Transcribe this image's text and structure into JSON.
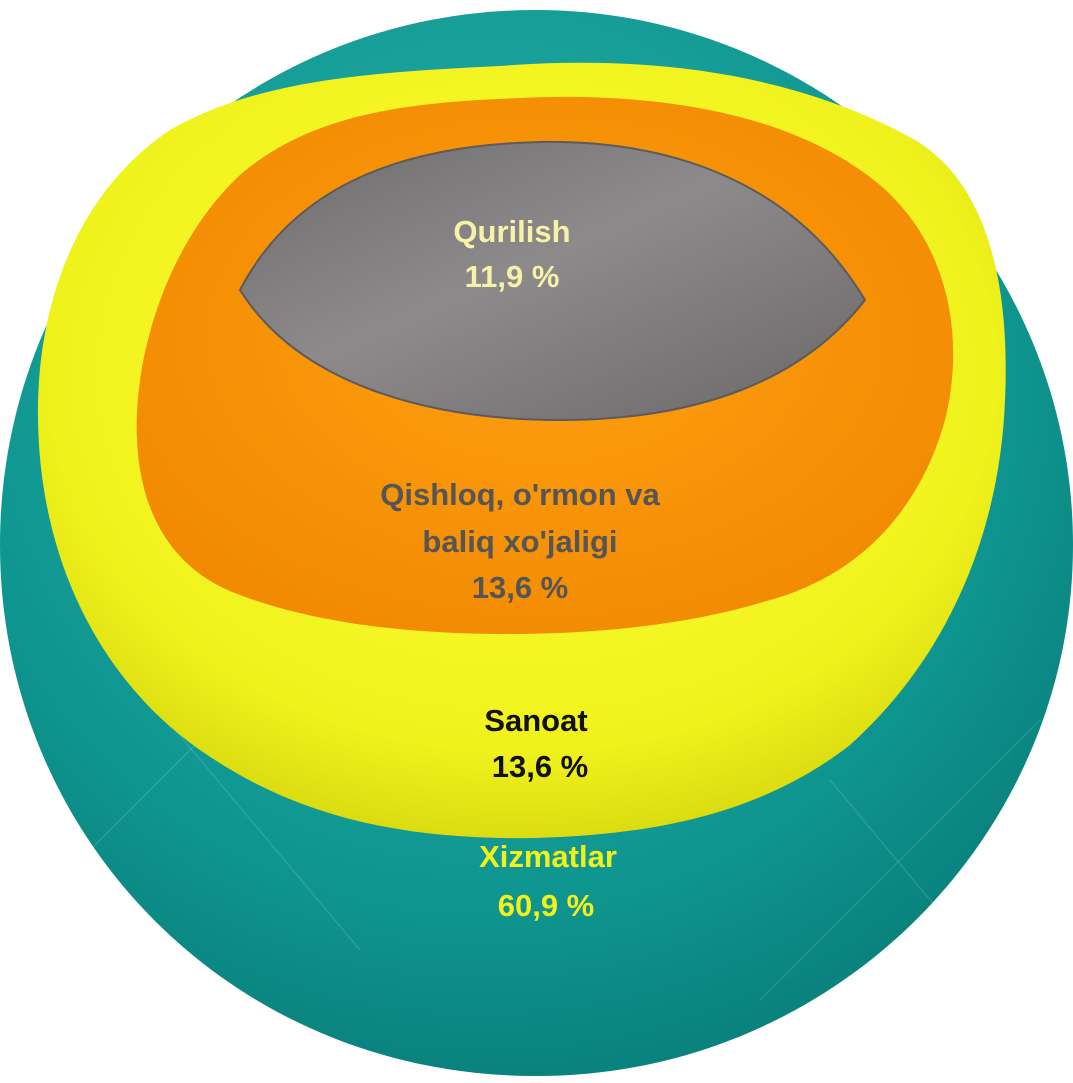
{
  "chart_data": {
    "type": "pie",
    "title": "",
    "legend": "none",
    "slices": [
      {
        "label": "Xizmatlar",
        "value": 60.9,
        "value_text": "60,9 %",
        "color": "#0f958f",
        "text_color": "#f2f21a"
      },
      {
        "label": "Sanoat",
        "value": 13.6,
        "value_text": "13,6 %",
        "color": "#f0f21c",
        "text_color": "#111111"
      },
      {
        "label": "Qishloq, o'rmon va baliq xo'jaligi",
        "label_lines": [
          "Qishloq, o'rmon va",
          "baliq xo'jaligi"
        ],
        "value": 13.6,
        "value_text": "13,6 %",
        "color": "#fb9403",
        "text_color": "#555555"
      },
      {
        "label": "Qurilish",
        "value": 11.9,
        "value_text": "11,9 %",
        "color": "#7a7778",
        "text_color": "#f6f3a8"
      }
    ]
  }
}
